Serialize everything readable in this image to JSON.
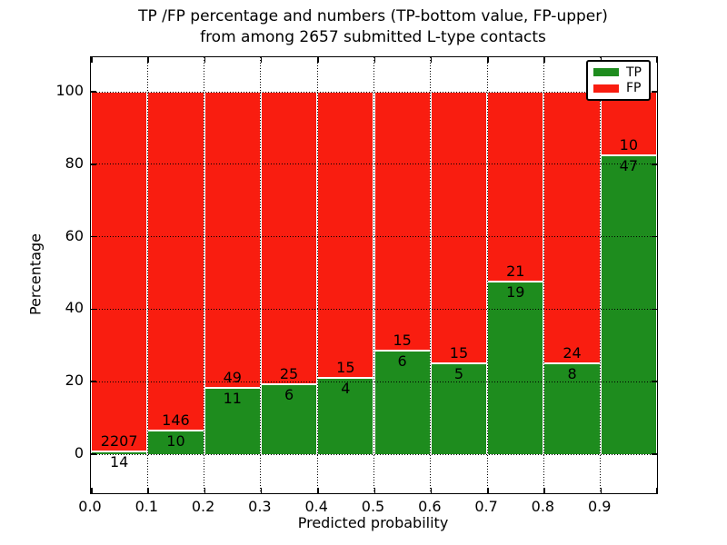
{
  "title": {
    "line1": "TP /FP percentage and numbers (TP-bottom value, FP-upper)",
    "line2": "from among 2657 submitted L-type contacts"
  },
  "axes": {
    "xlabel": "Predicted probability",
    "ylabel": "Percentage",
    "xtick_labels": [
      "0.0",
      "0.1",
      "0.2",
      "0.3",
      "0.4",
      "0.5",
      "0.6",
      "0.7",
      "0.8",
      "0.9"
    ],
    "ytick_values": [
      0,
      20,
      40,
      60,
      80,
      100
    ]
  },
  "legend": {
    "items": [
      {
        "label": "TP",
        "color": "#1e8c1e"
      },
      {
        "label": "FP",
        "color": "#f91d10"
      }
    ]
  },
  "colors": {
    "tp_green": "#1e8c1e",
    "fp_red": "#f91d10",
    "bar_edge": "#ffffff",
    "grid": "#000000"
  },
  "chart_data": {
    "type": "bar",
    "stacked": true,
    "normalized_to_percent": true,
    "title": "TP /FP percentage and numbers (TP-bottom value, FP-upper) from among 2657 submitted L-type contacts",
    "xlabel": "Predicted probability",
    "ylabel": "Percentage",
    "categories": [
      "0.0-0.1",
      "0.1-0.2",
      "0.2-0.3",
      "0.3-0.4",
      "0.4-0.5",
      "0.5-0.6",
      "0.6-0.7",
      "0.7-0.8",
      "0.8-0.9",
      "0.9-1.0"
    ],
    "bin_edges": [
      0.0,
      0.1,
      0.2,
      0.3,
      0.4,
      0.5,
      0.6,
      0.7,
      0.8,
      0.9,
      1.0
    ],
    "series": [
      {
        "name": "TP",
        "color": "#1e8c1e",
        "counts": [
          14,
          10,
          11,
          6,
          4,
          6,
          5,
          19,
          8,
          47
        ]
      },
      {
        "name": "FP",
        "color": "#f91d10",
        "counts": [
          2207,
          146,
          49,
          25,
          15,
          15,
          15,
          21,
          24,
          10
        ]
      }
    ],
    "tp_percent": [
      0.63,
      6.41,
      18.33,
      19.35,
      21.05,
      28.57,
      25.0,
      47.5,
      25.0,
      82.46
    ],
    "total_contacts": 2657,
    "xlim": [
      0.0,
      1.0
    ],
    "ylim": [
      -10.8,
      109.8
    ],
    "grid": "dotted",
    "legend_position": "upper right"
  }
}
